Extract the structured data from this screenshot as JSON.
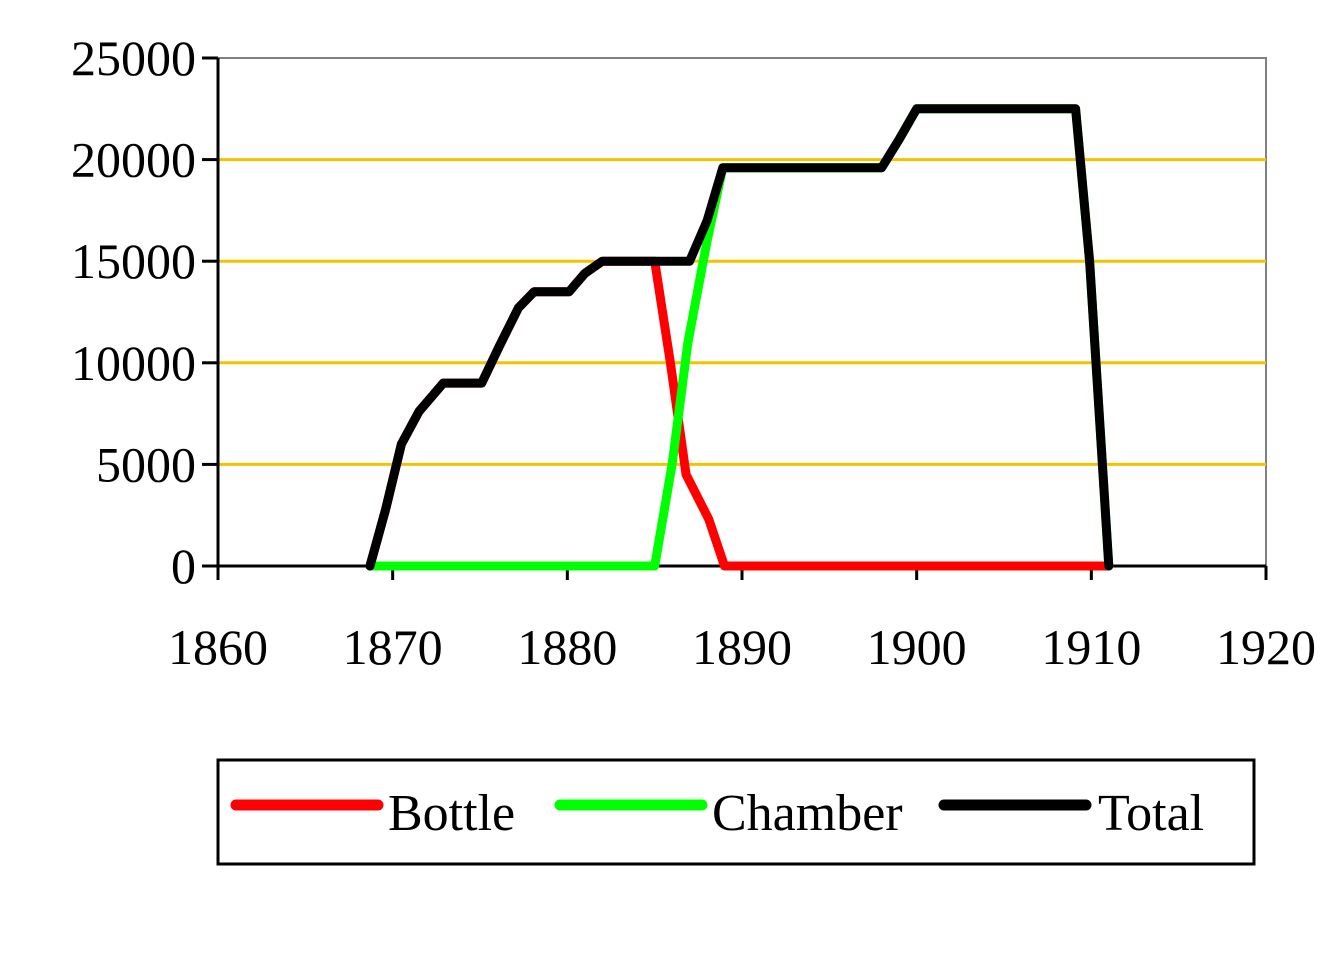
{
  "chart_data": {
    "type": "line",
    "xlim": [
      1860,
      1920
    ],
    "ylim": [
      0,
      25000
    ],
    "x_ticks": [
      1860,
      1870,
      1880,
      1890,
      1900,
      1910,
      1920
    ],
    "y_ticks": [
      0,
      5000,
      10000,
      15000,
      20000,
      25000
    ],
    "grid": {
      "horizontal": true,
      "vertical": false,
      "color": "#f2c400"
    },
    "legend": {
      "position": "bottom"
    },
    "series": [
      {
        "name": "Bottle",
        "color": "#ff0000",
        "points": [
          [
            1868.7,
            0
          ],
          [
            1869.6,
            2800
          ],
          [
            1870.5,
            6000
          ],
          [
            1871.5,
            7600
          ],
          [
            1872.9,
            9000
          ],
          [
            1875.1,
            9000
          ],
          [
            1876.1,
            10800
          ],
          [
            1877.2,
            12700
          ],
          [
            1878.1,
            13500
          ],
          [
            1880.1,
            13500
          ],
          [
            1881.0,
            14400
          ],
          [
            1882.0,
            15000
          ],
          [
            1885.0,
            15000
          ],
          [
            1885.9,
            10000
          ],
          [
            1886.8,
            4500
          ],
          [
            1888.1,
            2300
          ],
          [
            1889.0,
            0
          ],
          [
            1911.0,
            0
          ]
        ]
      },
      {
        "name": "Chamber",
        "color": "#00ff00",
        "points": [
          [
            1868.7,
            0
          ],
          [
            1885.0,
            0
          ],
          [
            1886.0,
            5000
          ],
          [
            1886.9,
            11000
          ],
          [
            1888.0,
            16000
          ],
          [
            1888.9,
            19600
          ],
          [
            1898.0,
            19600
          ],
          [
            1899.0,
            21000
          ],
          [
            1900.0,
            22500
          ],
          [
            1909.1,
            22500
          ],
          [
            1909.9,
            15000
          ],
          [
            1911.0,
            0
          ]
        ]
      },
      {
        "name": "Total",
        "color": "#000000",
        "points": [
          [
            1868.7,
            0
          ],
          [
            1869.6,
            2800
          ],
          [
            1870.5,
            6000
          ],
          [
            1871.5,
            7600
          ],
          [
            1872.9,
            9000
          ],
          [
            1875.1,
            9000
          ],
          [
            1876.1,
            10800
          ],
          [
            1877.2,
            12700
          ],
          [
            1878.1,
            13500
          ],
          [
            1880.1,
            13500
          ],
          [
            1881.0,
            14400
          ],
          [
            1882.0,
            15000
          ],
          [
            1887.0,
            15000
          ],
          [
            1888.0,
            17000
          ],
          [
            1888.9,
            19600
          ],
          [
            1898.0,
            19600
          ],
          [
            1899.0,
            21000
          ],
          [
            1900.0,
            22500
          ],
          [
            1909.1,
            22500
          ],
          [
            1909.9,
            15000
          ],
          [
            1911.0,
            0
          ]
        ]
      }
    ]
  }
}
